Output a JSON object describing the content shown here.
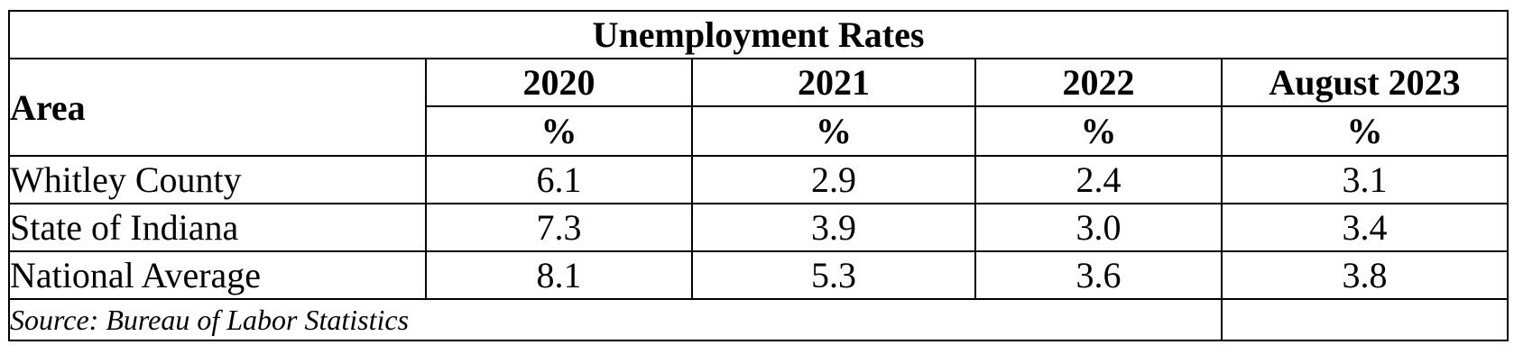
{
  "table": {
    "title": "Unemployment Rates",
    "area_header": "Area",
    "years": [
      "2020",
      "2021",
      "2022",
      "August 2023"
    ],
    "unit": "%",
    "rows": [
      {
        "area": "Whitley County",
        "values": [
          "6.1",
          "2.9",
          "2.4",
          "3.1"
        ]
      },
      {
        "area": "State of Indiana",
        "values": [
          "7.3",
          "3.9",
          "3.0",
          "3.4"
        ]
      },
      {
        "area": "National Average",
        "values": [
          "8.1",
          "5.3",
          "3.6",
          "3.8"
        ]
      }
    ],
    "source": "Source: Bureau of Labor Statistics"
  }
}
